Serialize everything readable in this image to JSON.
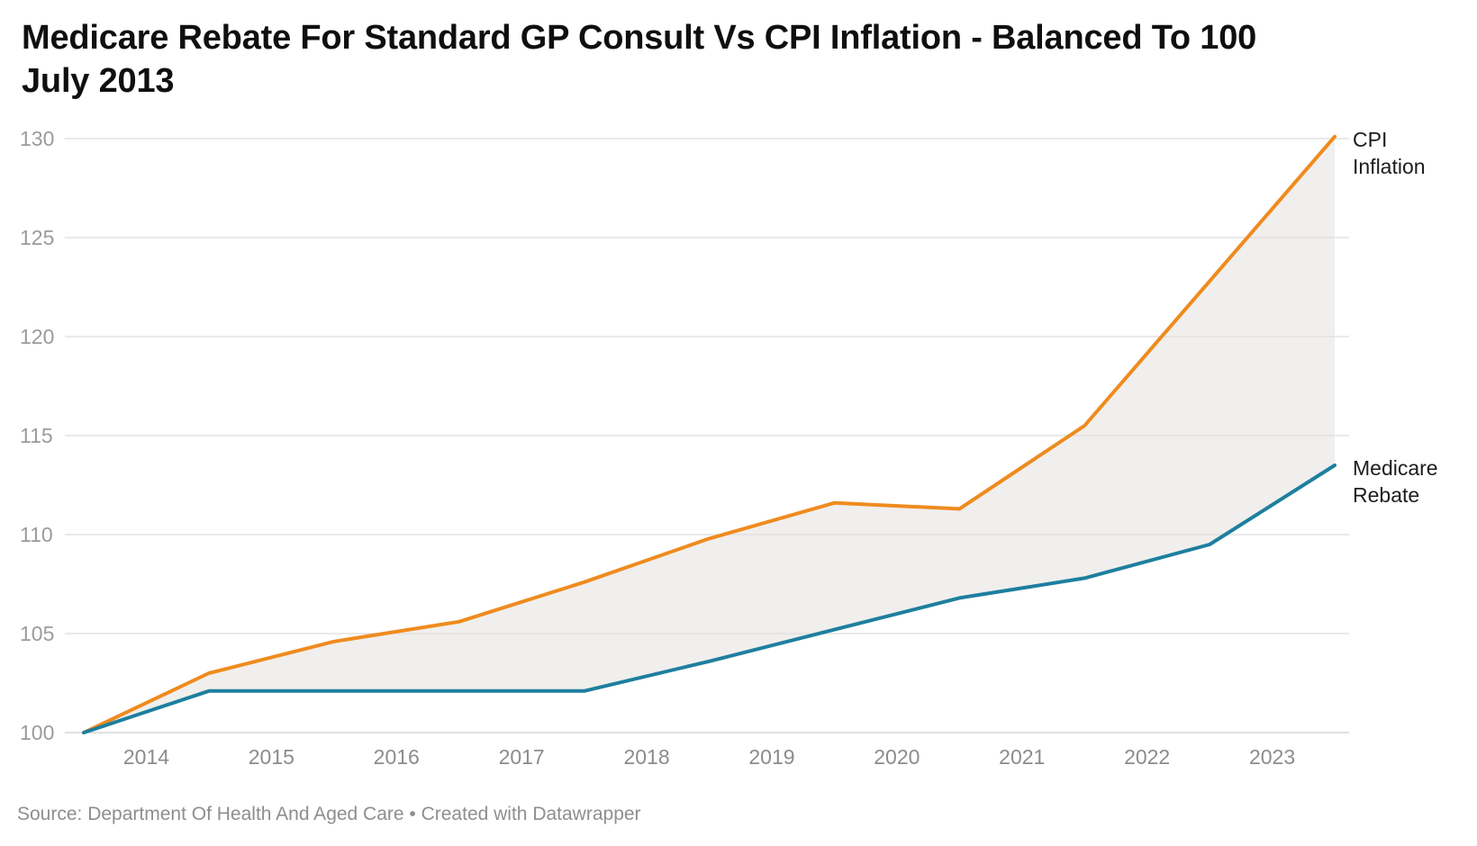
{
  "title": {
    "line1": "Medicare Rebate For Standard GP Consult Vs CPI Inflation - Balanced To 100",
    "line2": "July 2013"
  },
  "footer": {
    "text": "Source: Department Of Health And Aged Care • Created with Datawrapper"
  },
  "chart_data": {
    "type": "line",
    "title": "Medicare Rebate For Standard GP Consult Vs CPI Inflation - Balanced To 100 July 2013",
    "xlabel": "",
    "ylabel": "",
    "x": [
      2013.5,
      2014.5,
      2015.5,
      2016.5,
      2017.5,
      2018.5,
      2019.5,
      2020.5,
      2021.5,
      2022.5,
      2023.5
    ],
    "series": [
      {
        "name": "CPI Inflation",
        "label_lines": [
          "CPI",
          "Inflation"
        ],
        "color": "#EF8B1E",
        "values": [
          100,
          103.0,
          104.6,
          105.6,
          107.6,
          109.8,
          111.6,
          111.3,
          115.5,
          122.8,
          130.1
        ]
      },
      {
        "name": "Medicare Rebate",
        "label_lines": [
          "Medicare",
          "Rebate"
        ],
        "color": "#1E7F9E",
        "values": [
          100,
          102.1,
          102.1,
          102.1,
          102.1,
          103.6,
          105.2,
          106.8,
          107.8,
          109.5,
          113.5
        ]
      }
    ],
    "yticks": [
      100,
      105,
      110,
      115,
      120,
      125,
      130
    ],
    "xticks": [
      2014,
      2015,
      2016,
      2017,
      2018,
      2019,
      2020,
      2021,
      2022,
      2023
    ],
    "ylim": [
      100,
      130
    ],
    "xlim": [
      2013.5,
      2023.5
    ],
    "grid": "horizontal",
    "legend_position": "line-end-labels-right",
    "colors": {
      "area_between": "#F0EFED",
      "gridline": "#E2E2E2",
      "baseline": "#D5D5D5",
      "y_tick_text": "#9B9B9B",
      "x_tick_text": "#8C8C8C",
      "line_label_text": "#1D1D1D"
    }
  }
}
